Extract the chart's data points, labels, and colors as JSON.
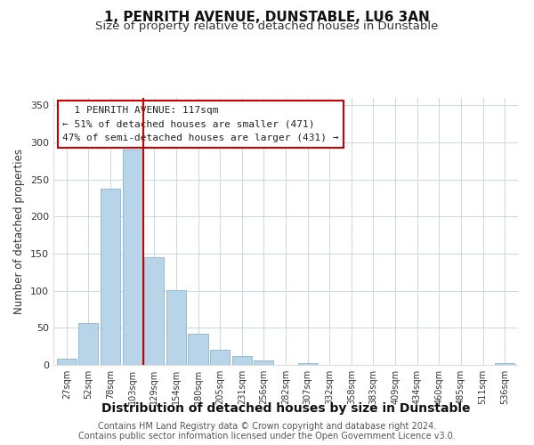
{
  "title": "1, PENRITH AVENUE, DUNSTABLE, LU6 3AN",
  "subtitle": "Size of property relative to detached houses in Dunstable",
  "xlabel": "Distribution of detached houses by size in Dunstable",
  "ylabel": "Number of detached properties",
  "bar_labels": [
    "27sqm",
    "52sqm",
    "78sqm",
    "103sqm",
    "129sqm",
    "154sqm",
    "180sqm",
    "205sqm",
    "231sqm",
    "256sqm",
    "282sqm",
    "307sqm",
    "332sqm",
    "358sqm",
    "383sqm",
    "409sqm",
    "434sqm",
    "460sqm",
    "485sqm",
    "511sqm",
    "536sqm"
  ],
  "bar_values": [
    8,
    57,
    238,
    291,
    145,
    101,
    42,
    20,
    12,
    6,
    0,
    3,
    0,
    0,
    0,
    0,
    0,
    0,
    0,
    0,
    2
  ],
  "bar_color": "#b8d4e8",
  "bar_edge_color": "#8ab4d0",
  "vline_x": 3.5,
  "vline_color": "#cc0000",
  "ylim": [
    0,
    360
  ],
  "yticks": [
    0,
    50,
    100,
    150,
    200,
    250,
    300,
    350
  ],
  "annotation_title": "1 PENRITH AVENUE: 117sqm",
  "annotation_line1": "← 51% of detached houses are smaller (471)",
  "annotation_line2": "47% of semi-detached houses are larger (431) →",
  "footer_line1": "Contains HM Land Registry data © Crown copyright and database right 2024.",
  "footer_line2": "Contains public sector information licensed under the Open Government Licence v3.0.",
  "background_color": "#ffffff",
  "grid_color": "#c8d8e8",
  "title_fontsize": 11,
  "subtitle_fontsize": 9.5,
  "xlabel_fontsize": 10,
  "ylabel_fontsize": 8.5,
  "tick_fontsize": 7,
  "annotation_fontsize": 8,
  "footer_fontsize": 7
}
